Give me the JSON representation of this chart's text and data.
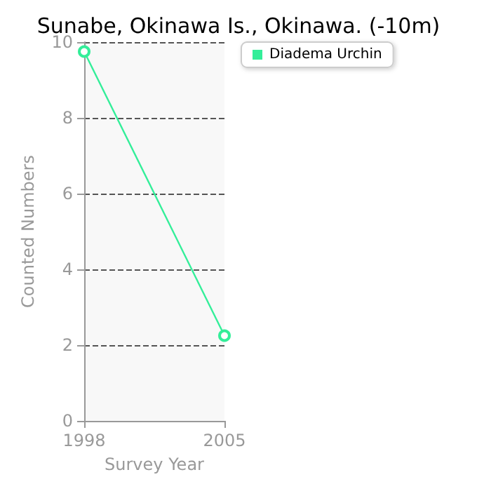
{
  "chart_data": {
    "type": "line",
    "title": "Sunabe, Okinawa Is., Okinawa. (-10m)",
    "xlabel": "Survey Year",
    "ylabel": "Counted Numbers",
    "x": [
      1998,
      2005
    ],
    "series": [
      {
        "name": "Diadema Urchin",
        "color": "#33ee99",
        "values": [
          9.75,
          2.25
        ]
      }
    ],
    "xlim": [
      1998,
      2005
    ],
    "xticks": [
      1998,
      2005
    ],
    "ylim": [
      0,
      10
    ],
    "yticks": [
      0,
      2,
      4,
      6,
      8,
      10
    ],
    "grid": "y",
    "legend": "top right",
    "marker": "circle",
    "line_style": "solid"
  }
}
